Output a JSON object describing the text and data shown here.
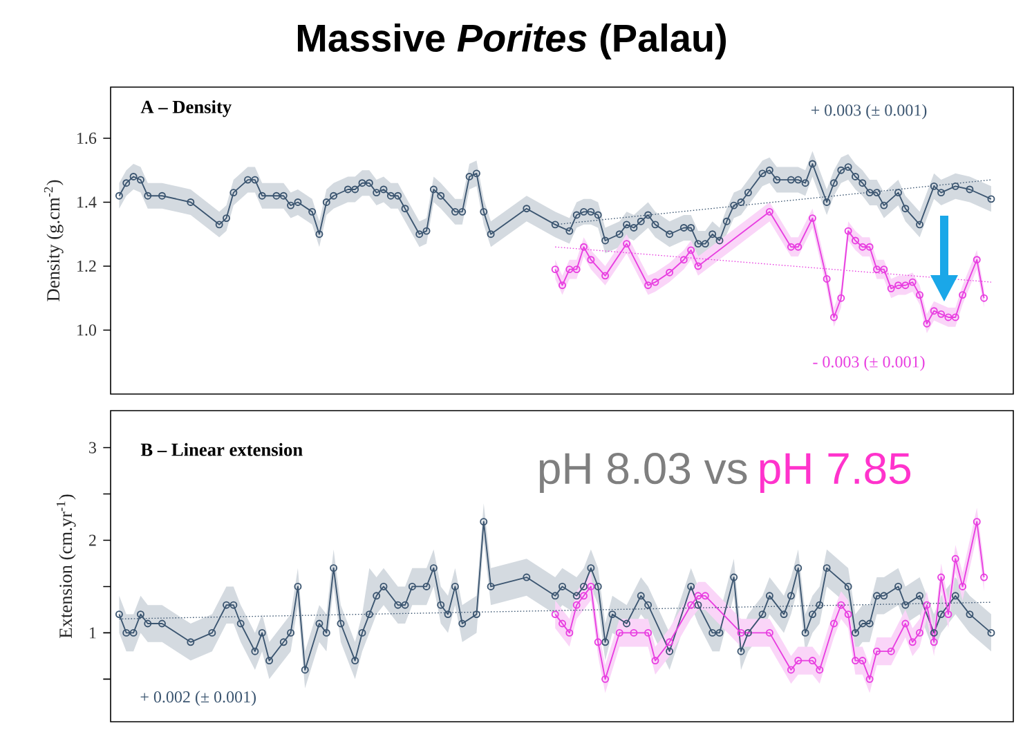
{
  "chart_data": [
    {
      "type": "line",
      "title": "Massive *Porites* (Palau)",
      "subtitle": "A – Density",
      "ylabel": "Density (g.cm$^{-2}$)",
      "ylim": [
        0.8,
        1.76
      ],
      "yticks": [
        {
          "value": 1.0,
          "label": "1.0"
        },
        1.2,
        1.4,
        1.6
      ],
      "tick_labels": "y",
      "marker": "circle",
      "annotations": [
        "+ 0.003 (± 0.001)",
        "- 0.003 (± 0.001)"
      ],
      "categories": [
        null,
        null,
        null,
        null,
        null,
        null,
        null,
        null,
        null,
        null,
        null,
        null,
        null,
        null,
        null,
        null,
        null,
        null,
        null,
        null,
        null,
        null,
        null,
        null,
        null,
        null,
        null,
        null,
        null,
        null,
        null,
        null,
        null,
        null,
        null,
        null,
        null,
        null,
        null,
        null,
        null,
        null,
        null,
        null,
        null,
        null,
        null,
        null,
        null,
        null,
        null,
        null,
        null,
        null,
        null,
        null,
        null,
        null,
        null,
        null,
        null,
        null,
        null,
        null,
        null,
        null,
        null,
        null,
        null,
        null,
        null,
        null,
        null,
        null,
        null,
        null,
        null,
        null,
        null,
        null,
        null,
        null,
        null,
        null,
        null,
        null,
        null,
        null,
        null,
        null,
        null,
        null,
        null,
        null,
        null,
        null,
        null,
        null,
        null,
        null,
        null,
        null,
        null,
        null,
        null,
        null,
        null,
        null,
        null,
        null,
        null,
        null,
        null,
        null,
        null,
        null,
        null,
        null,
        null,
        null,
        null,
        null,
        null
      ],
      "series": [
        {
          "line_style": "solid",
          "color": "#3b5570",
          "values": [
            1.42,
            1.46,
            1.48,
            1.47,
            1.42,
            null,
            1.42,
            null,
            null,
            null,
            1.4,
            null,
            null,
            null,
            1.33,
            1.35,
            1.43,
            null,
            1.47,
            1.47,
            1.42,
            null,
            1.42,
            1.42,
            1.39,
            1.4,
            null,
            1.37,
            1.3,
            1.4,
            1.42,
            null,
            1.44,
            1.44,
            1.46,
            1.46,
            1.43,
            1.44,
            1.42,
            1.42,
            1.38,
            null,
            1.3,
            1.31,
            1.44,
            1.42,
            null,
            1.37,
            1.37,
            1.48,
            1.49,
            1.37,
            1.3,
            null,
            null,
            null,
            null,
            1.38,
            null,
            null,
            null,
            1.33,
            null,
            1.31,
            1.36,
            1.37,
            1.37,
            1.36,
            1.28,
            null,
            1.3,
            1.33,
            1.32,
            1.34,
            1.36,
            1.33,
            null,
            1.3,
            null,
            1.32,
            1.32,
            1.27,
            1.27,
            1.3,
            1.28,
            1.34,
            1.39,
            1.4,
            1.43,
            null,
            1.49,
            1.5,
            1.47,
            null,
            1.47,
            1.47,
            1.46,
            1.52,
            null,
            1.4,
            1.46,
            1.5,
            1.51,
            1.48,
            1.46,
            1.43,
            1.43,
            1.39,
            null,
            1.43,
            1.38,
            null,
            1.33,
            null,
            1.45,
            1.43,
            null,
            1.45,
            null,
            1.44,
            null,
            null,
            1.41
          ],
          "lower": [
            1.38,
            1.42,
            1.44,
            1.43,
            1.38,
            null,
            1.38,
            null,
            null,
            null,
            1.36,
            null,
            null,
            null,
            1.29,
            1.31,
            1.39,
            null,
            1.43,
            1.43,
            1.38,
            null,
            1.38,
            1.38,
            1.35,
            1.36,
            null,
            1.33,
            1.26,
            1.36,
            1.38,
            null,
            1.4,
            1.4,
            1.42,
            1.42,
            1.39,
            1.4,
            1.38,
            1.38,
            1.34,
            null,
            1.26,
            1.27,
            1.4,
            1.38,
            null,
            1.33,
            1.33,
            1.44,
            1.45,
            1.33,
            1.26,
            null,
            null,
            null,
            null,
            1.34,
            null,
            null,
            null,
            1.29,
            null,
            1.27,
            1.32,
            1.33,
            1.33,
            1.32,
            1.24,
            null,
            1.26,
            1.29,
            1.28,
            1.3,
            1.32,
            1.29,
            null,
            1.26,
            null,
            1.28,
            1.28,
            1.23,
            1.23,
            1.26,
            1.24,
            1.3,
            1.35,
            1.36,
            1.39,
            null,
            1.45,
            1.46,
            1.43,
            null,
            1.43,
            1.43,
            1.42,
            1.48,
            null,
            1.36,
            1.42,
            1.46,
            1.47,
            1.44,
            1.42,
            1.39,
            1.39,
            1.35,
            null,
            1.39,
            1.34,
            null,
            1.29,
            null,
            1.41,
            1.39,
            null,
            1.41,
            null,
            1.4,
            null,
            null,
            1.37
          ],
          "upper": [
            1.46,
            1.5,
            1.52,
            1.51,
            1.46,
            null,
            1.46,
            null,
            null,
            null,
            1.44,
            null,
            null,
            null,
            1.37,
            1.39,
            1.47,
            null,
            1.51,
            1.51,
            1.46,
            null,
            1.46,
            1.46,
            1.43,
            1.44,
            null,
            1.41,
            1.34,
            1.44,
            1.46,
            null,
            1.48,
            1.48,
            1.5,
            1.5,
            1.47,
            1.48,
            1.46,
            1.46,
            1.42,
            null,
            1.34,
            1.35,
            1.48,
            1.46,
            null,
            1.41,
            1.41,
            1.52,
            1.53,
            1.41,
            1.34,
            null,
            null,
            null,
            null,
            1.42,
            null,
            null,
            null,
            1.37,
            null,
            1.35,
            1.4,
            1.41,
            1.41,
            1.4,
            1.32,
            null,
            1.34,
            1.37,
            1.36,
            1.38,
            1.4,
            1.37,
            null,
            1.34,
            null,
            1.36,
            1.36,
            1.31,
            1.31,
            1.34,
            1.32,
            1.38,
            1.43,
            1.44,
            1.47,
            null,
            1.53,
            1.54,
            1.51,
            null,
            1.51,
            1.51,
            1.5,
            1.56,
            null,
            1.44,
            1.5,
            1.54,
            1.55,
            1.52,
            1.5,
            1.47,
            1.47,
            1.43,
            null,
            1.47,
            1.42,
            null,
            1.37,
            null,
            1.49,
            1.47,
            null,
            1.49,
            null,
            1.48,
            null,
            null,
            1.45
          ]
        },
        {
          "line_style": "solid",
          "color": "#e83ee0",
          "values": [
            null,
            null,
            null,
            null,
            null,
            null,
            null,
            null,
            null,
            null,
            null,
            null,
            null,
            null,
            null,
            null,
            null,
            null,
            null,
            null,
            null,
            null,
            null,
            null,
            null,
            null,
            null,
            null,
            null,
            null,
            null,
            null,
            null,
            null,
            null,
            null,
            null,
            null,
            null,
            null,
            null,
            null,
            null,
            null,
            null,
            null,
            null,
            null,
            null,
            null,
            null,
            null,
            null,
            null,
            null,
            null,
            null,
            null,
            null,
            null,
            null,
            1.19,
            1.14,
            1.19,
            1.19,
            1.26,
            1.22,
            null,
            1.17,
            null,
            null,
            1.27,
            null,
            null,
            1.14,
            1.15,
            null,
            1.18,
            null,
            1.22,
            1.25,
            1.2,
            null,
            null,
            null,
            null,
            null,
            null,
            null,
            null,
            null,
            1.37,
            null,
            null,
            1.26,
            1.26,
            null,
            1.35,
            null,
            1.16,
            1.04,
            1.1,
            1.31,
            1.28,
            1.26,
            1.26,
            1.19,
            1.19,
            1.13,
            1.14,
            1.14,
            1.15,
            1.11,
            1.02,
            1.06,
            1.05,
            1.04,
            1.04,
            1.11,
            null,
            1.22,
            1.1,
            null
          ],
          "lower": [
            null,
            null,
            null,
            null,
            null,
            null,
            null,
            null,
            null,
            null,
            null,
            null,
            null,
            null,
            null,
            null,
            null,
            null,
            null,
            null,
            null,
            null,
            null,
            null,
            null,
            null,
            null,
            null,
            null,
            null,
            null,
            null,
            null,
            null,
            null,
            null,
            null,
            null,
            null,
            null,
            null,
            null,
            null,
            null,
            null,
            null,
            null,
            null,
            null,
            null,
            null,
            null,
            null,
            null,
            null,
            null,
            null,
            null,
            null,
            null,
            null,
            1.16,
            1.11,
            1.16,
            1.16,
            1.23,
            1.19,
            null,
            1.14,
            null,
            null,
            1.24,
            null,
            null,
            1.11,
            1.12,
            null,
            1.15,
            null,
            1.19,
            1.22,
            1.17,
            null,
            null,
            null,
            null,
            null,
            null,
            null,
            null,
            null,
            1.34,
            null,
            null,
            1.23,
            1.23,
            null,
            1.32,
            null,
            1.13,
            1.01,
            1.07,
            1.28,
            1.25,
            1.23,
            1.23,
            1.16,
            1.16,
            1.1,
            1.11,
            1.11,
            1.12,
            1.08,
            0.99,
            1.03,
            1.02,
            1.01,
            1.01,
            1.08,
            null,
            1.19,
            1.07,
            null
          ],
          "upper": [
            null,
            null,
            null,
            null,
            null,
            null,
            null,
            null,
            null,
            null,
            null,
            null,
            null,
            null,
            null,
            null,
            null,
            null,
            null,
            null,
            null,
            null,
            null,
            null,
            null,
            null,
            null,
            null,
            null,
            null,
            null,
            null,
            null,
            null,
            null,
            null,
            null,
            null,
            null,
            null,
            null,
            null,
            null,
            null,
            null,
            null,
            null,
            null,
            null,
            null,
            null,
            null,
            null,
            null,
            null,
            null,
            null,
            null,
            null,
            null,
            null,
            1.22,
            1.17,
            1.22,
            1.22,
            1.29,
            1.25,
            null,
            1.2,
            null,
            null,
            1.3,
            null,
            null,
            1.17,
            1.18,
            null,
            1.21,
            null,
            1.25,
            1.28,
            1.23,
            null,
            null,
            null,
            null,
            null,
            null,
            null,
            null,
            null,
            1.4,
            null,
            null,
            1.29,
            1.29,
            null,
            1.38,
            null,
            1.19,
            1.07,
            1.13,
            1.34,
            1.31,
            1.29,
            1.29,
            1.22,
            1.22,
            1.16,
            1.17,
            1.17,
            1.18,
            1.14,
            1.05,
            1.09,
            1.08,
            1.07,
            1.07,
            1.14,
            null,
            1.25,
            1.13,
            null
          ]
        },
        {
          "line_style": "dotted",
          "marker": "none",
          "color": "#3b5570",
          "values": [
            null,
            null,
            null,
            null,
            null,
            null,
            null,
            null,
            null,
            null,
            null,
            null,
            null,
            null,
            null,
            null,
            null,
            null,
            null,
            null,
            null,
            null,
            null,
            null,
            null,
            null,
            null,
            null,
            null,
            null,
            null,
            null,
            null,
            null,
            null,
            null,
            null,
            null,
            null,
            null,
            null,
            null,
            null,
            null,
            null,
            null,
            null,
            null,
            null,
            null,
            null,
            null,
            null,
            null,
            null,
            null,
            null,
            null,
            null,
            null,
            null,
            1.33,
            null,
            null,
            null,
            null,
            null,
            null,
            null,
            null,
            null,
            null,
            null,
            null,
            null,
            null,
            null,
            null,
            null,
            null,
            null,
            null,
            null,
            null,
            null,
            null,
            null,
            null,
            null,
            null,
            null,
            null,
            null,
            null,
            null,
            null,
            null,
            null,
            null,
            null,
            null,
            null,
            null,
            null,
            null,
            null,
            null,
            null,
            null,
            null,
            null,
            null,
            null,
            null,
            null,
            null,
            null,
            null,
            null,
            null,
            null,
            null,
            1.47
          ]
        },
        {
          "line_style": "dotted",
          "marker": "none",
          "color": "#e83ee0",
          "values": [
            null,
            null,
            null,
            null,
            null,
            null,
            null,
            null,
            null,
            null,
            null,
            null,
            null,
            null,
            null,
            null,
            null,
            null,
            null,
            null,
            null,
            null,
            null,
            null,
            null,
            null,
            null,
            null,
            null,
            null,
            null,
            null,
            null,
            null,
            null,
            null,
            null,
            null,
            null,
            null,
            null,
            null,
            null,
            null,
            null,
            null,
            null,
            null,
            null,
            null,
            null,
            null,
            null,
            null,
            null,
            null,
            null,
            null,
            null,
            null,
            null,
            1.26,
            null,
            null,
            null,
            null,
            null,
            null,
            null,
            null,
            null,
            null,
            null,
            null,
            null,
            null,
            null,
            null,
            null,
            null,
            null,
            null,
            null,
            null,
            null,
            null,
            null,
            null,
            null,
            null,
            null,
            null,
            null,
            null,
            null,
            null,
            null,
            null,
            null,
            null,
            null,
            null,
            null,
            null,
            null,
            null,
            null,
            null,
            null,
            null,
            null,
            null,
            null,
            null,
            null,
            null,
            null,
            null,
            null,
            null,
            null,
            null,
            1.15
          ]
        }
      ]
    },
    {
      "type": "line",
      "title": "B – Linear extension",
      "ylabel": "Extension (cm.yr$^{-1}$)",
      "ylim": [
        0.04,
        3.4
      ],
      "yticks": [
        {
          "value": 0.5,
          "label": null
        },
        1,
        {
          "value": 1.5,
          "label": null
        },
        2,
        {
          "value": 2.5,
          "label": null
        },
        3
      ],
      "tick_labels": "y",
      "marker": "circle",
      "annotations": [
        "+ 0.002 (± 0.001)",
        "pH 8.03  vs",
        "pH 7.85"
      ],
      "categories": [
        null,
        null,
        null,
        null,
        null,
        null,
        null,
        null,
        null,
        null,
        null,
        null,
        null,
        null,
        null,
        null,
        null,
        null,
        null,
        null,
        null,
        null,
        null,
        null,
        null,
        null,
        null,
        null,
        null,
        null,
        null,
        null,
        null,
        null,
        null,
        null,
        null,
        null,
        null,
        null,
        null,
        null,
        null,
        null,
        null,
        null,
        null,
        null,
        null,
        null,
        null,
        null,
        null,
        null,
        null,
        null,
        null,
        null,
        null,
        null,
        null,
        null,
        null,
        null,
        null,
        null,
        null,
        null,
        null,
        null,
        null,
        null,
        null,
        null,
        null,
        null,
        null,
        null,
        null,
        null,
        null,
        null,
        null,
        null,
        null,
        null,
        null,
        null,
        null,
        null,
        null,
        null,
        null,
        null,
        null,
        null,
        null,
        null,
        null,
        null,
        null,
        null,
        null,
        null,
        null,
        null,
        null,
        null,
        null,
        null,
        null,
        null,
        null,
        null,
        null,
        null,
        null,
        null,
        null,
        null,
        null,
        null,
        null
      ],
      "series": [
        {
          "line_style": "solid",
          "color": "#3b5570",
          "values": [
            1.2,
            1.0,
            1.0,
            1.2,
            1.1,
            null,
            1.1,
            null,
            null,
            null,
            0.9,
            null,
            null,
            1.0,
            null,
            1.3,
            1.3,
            1.1,
            null,
            0.8,
            1.0,
            0.7,
            null,
            0.9,
            1.0,
            1.5,
            0.6,
            null,
            1.1,
            1.0,
            1.7,
            1.1,
            null,
            0.7,
            1.0,
            1.2,
            1.4,
            1.5,
            null,
            1.3,
            1.3,
            1.5,
            null,
            1.5,
            1.7,
            1.3,
            1.2,
            1.5,
            1.1,
            null,
            1.2,
            2.2,
            1.5,
            null,
            null,
            null,
            null,
            1.6,
            null,
            null,
            null,
            1.4,
            1.5,
            null,
            1.4,
            1.5,
            1.7,
            1.5,
            0.9,
            1.2,
            null,
            1.1,
            null,
            1.4,
            1.3,
            null,
            null,
            0.8,
            null,
            null,
            1.5,
            1.3,
            null,
            1.0,
            1.0,
            null,
            1.6,
            0.8,
            1.0,
            null,
            1.2,
            1.4,
            null,
            1.2,
            1.4,
            1.7,
            1.0,
            1.2,
            1.3,
            1.7,
            null,
            null,
            1.5,
            1.0,
            1.1,
            1.1,
            1.4,
            1.4,
            null,
            1.5,
            1.3,
            null,
            1.4,
            null,
            1.0,
            1.2,
            null,
            1.4,
            null,
            1.2,
            null,
            null,
            1.0
          ],
          "lower": [
            1.0,
            0.8,
            0.8,
            1.0,
            0.9,
            null,
            0.9,
            null,
            null,
            null,
            0.7,
            null,
            null,
            0.8,
            null,
            1.1,
            1.1,
            0.9,
            null,
            0.6,
            0.8,
            0.5,
            null,
            0.7,
            0.8,
            1.3,
            0.4,
            null,
            0.9,
            0.8,
            1.5,
            0.9,
            null,
            0.5,
            0.8,
            1.0,
            1.2,
            1.3,
            null,
            1.1,
            1.1,
            1.3,
            null,
            1.3,
            1.5,
            1.1,
            1.0,
            1.3,
            0.9,
            null,
            1.0,
            2.0,
            1.3,
            null,
            null,
            null,
            null,
            1.4,
            null,
            null,
            null,
            1.2,
            1.3,
            null,
            1.2,
            1.3,
            1.5,
            1.3,
            0.7,
            1.0,
            null,
            0.9,
            null,
            1.2,
            1.1,
            null,
            null,
            0.6,
            null,
            null,
            1.3,
            1.1,
            null,
            0.8,
            0.8,
            null,
            1.4,
            0.6,
            0.8,
            null,
            1.0,
            1.2,
            null,
            1.0,
            1.2,
            1.5,
            0.8,
            1.0,
            1.1,
            1.5,
            null,
            null,
            1.3,
            0.8,
            0.9,
            0.9,
            1.2,
            1.2,
            null,
            1.3,
            1.1,
            null,
            1.2,
            null,
            0.8,
            1.0,
            null,
            1.2,
            null,
            1.0,
            null,
            null,
            0.8
          ],
          "upper": [
            1.4,
            1.2,
            1.2,
            1.4,
            1.3,
            null,
            1.3,
            null,
            null,
            null,
            1.1,
            null,
            null,
            1.2,
            null,
            1.5,
            1.5,
            1.3,
            null,
            1.0,
            1.2,
            0.9,
            null,
            1.1,
            1.2,
            1.7,
            0.8,
            null,
            1.3,
            1.2,
            1.9,
            1.3,
            null,
            0.9,
            1.2,
            1.7,
            1.6,
            1.7,
            null,
            1.5,
            1.5,
            1.7,
            null,
            1.7,
            1.9,
            1.5,
            1.4,
            1.7,
            1.3,
            null,
            1.4,
            2.4,
            1.7,
            null,
            null,
            null,
            null,
            1.8,
            null,
            null,
            null,
            1.6,
            1.7,
            null,
            1.6,
            1.7,
            1.9,
            1.7,
            1.1,
            1.4,
            null,
            1.3,
            null,
            1.6,
            1.5,
            null,
            null,
            1.0,
            null,
            null,
            1.7,
            1.5,
            null,
            1.2,
            1.2,
            null,
            1.8,
            1.0,
            1.2,
            null,
            1.4,
            1.6,
            null,
            1.4,
            1.6,
            1.9,
            1.2,
            1.4,
            1.5,
            1.9,
            null,
            null,
            1.7,
            1.2,
            1.3,
            1.3,
            1.6,
            1.6,
            null,
            1.7,
            1.5,
            null,
            1.6,
            null,
            1.2,
            1.4,
            null,
            1.6,
            null,
            1.4,
            null,
            null,
            1.2
          ]
        },
        {
          "line_style": "solid",
          "color": "#e83ee0",
          "values": [
            null,
            null,
            null,
            null,
            null,
            null,
            null,
            null,
            null,
            null,
            null,
            null,
            null,
            null,
            null,
            null,
            null,
            null,
            null,
            null,
            null,
            null,
            null,
            null,
            null,
            null,
            null,
            null,
            null,
            null,
            null,
            null,
            null,
            null,
            null,
            null,
            null,
            null,
            null,
            null,
            null,
            null,
            null,
            null,
            null,
            null,
            null,
            null,
            null,
            null,
            null,
            null,
            null,
            null,
            null,
            null,
            null,
            null,
            null,
            null,
            null,
            1.2,
            1.1,
            1.0,
            1.3,
            1.4,
            1.5,
            0.9,
            0.5,
            null,
            1.0,
            null,
            1.0,
            null,
            1.0,
            0.7,
            null,
            0.9,
            null,
            null,
            1.3,
            1.4,
            1.4,
            null,
            null,
            null,
            null,
            1.0,
            null,
            null,
            null,
            1.0,
            null,
            null,
            0.6,
            0.7,
            null,
            0.7,
            0.6,
            null,
            1.1,
            1.3,
            1.2,
            0.7,
            0.7,
            0.5,
            0.8,
            null,
            0.8,
            null,
            1.1,
            0.9,
            1.0,
            1.3,
            0.9,
            1.6,
            1.2,
            1.8,
            1.5,
            null,
            2.2,
            1.6,
            null
          ],
          "lower": [
            null,
            null,
            null,
            null,
            null,
            null,
            null,
            null,
            null,
            null,
            null,
            null,
            null,
            null,
            null,
            null,
            null,
            null,
            null,
            null,
            null,
            null,
            null,
            null,
            null,
            null,
            null,
            null,
            null,
            null,
            null,
            null,
            null,
            null,
            null,
            null,
            null,
            null,
            null,
            null,
            null,
            null,
            null,
            null,
            null,
            null,
            null,
            null,
            null,
            null,
            null,
            null,
            null,
            null,
            null,
            null,
            null,
            null,
            null,
            null,
            null,
            1.05,
            0.95,
            0.85,
            1.15,
            1.25,
            1.35,
            0.75,
            0.35,
            null,
            0.85,
            null,
            0.85,
            null,
            0.85,
            0.55,
            null,
            0.75,
            null,
            null,
            1.15,
            1.25,
            1.25,
            null,
            null,
            null,
            null,
            0.85,
            null,
            null,
            null,
            0.85,
            null,
            null,
            0.45,
            0.55,
            null,
            0.55,
            0.45,
            null,
            0.95,
            1.15,
            1.05,
            0.55,
            0.55,
            0.35,
            0.65,
            null,
            0.65,
            null,
            0.95,
            0.75,
            0.85,
            1.15,
            0.75,
            1.45,
            1.05,
            1.65,
            1.35,
            null,
            2.05,
            1.45,
            null
          ],
          "upper": [
            null,
            null,
            null,
            null,
            null,
            null,
            null,
            null,
            null,
            null,
            null,
            null,
            null,
            null,
            null,
            null,
            null,
            null,
            null,
            null,
            null,
            null,
            null,
            null,
            null,
            null,
            null,
            null,
            null,
            null,
            null,
            null,
            null,
            null,
            null,
            null,
            null,
            null,
            null,
            null,
            null,
            null,
            null,
            null,
            null,
            null,
            null,
            null,
            null,
            null,
            null,
            null,
            null,
            null,
            null,
            null,
            null,
            null,
            null,
            null,
            null,
            1.35,
            1.25,
            1.15,
            1.45,
            1.55,
            1.65,
            1.05,
            0.65,
            null,
            1.15,
            null,
            1.15,
            null,
            1.15,
            0.85,
            null,
            1.05,
            null,
            null,
            1.45,
            1.55,
            1.55,
            null,
            null,
            null,
            null,
            1.15,
            null,
            null,
            null,
            1.15,
            null,
            null,
            0.75,
            0.85,
            null,
            0.85,
            0.75,
            null,
            1.25,
            1.45,
            1.35,
            0.85,
            0.85,
            0.65,
            0.95,
            null,
            0.95,
            null,
            1.25,
            1.05,
            1.15,
            1.45,
            1.05,
            1.75,
            1.35,
            1.95,
            1.65,
            null,
            2.35,
            1.75,
            null
          ]
        },
        {
          "line_style": "dotted",
          "marker": "none",
          "color": "#3b5570",
          "values": [
            1.15,
            null,
            null,
            null,
            null,
            null,
            null,
            null,
            null,
            null,
            null,
            null,
            null,
            null,
            null,
            null,
            null,
            null,
            null,
            null,
            null,
            null,
            null,
            null,
            null,
            null,
            null,
            null,
            null,
            null,
            null,
            null,
            null,
            null,
            null,
            null,
            null,
            null,
            null,
            null,
            null,
            null,
            null,
            null,
            null,
            null,
            null,
            null,
            null,
            null,
            null,
            null,
            null,
            null,
            null,
            null,
            null,
            null,
            null,
            null,
            null,
            null,
            null,
            null,
            null,
            null,
            null,
            null,
            null,
            null,
            null,
            null,
            null,
            null,
            null,
            null,
            null,
            null,
            null,
            null,
            null,
            null,
            null,
            null,
            null,
            null,
            null,
            null,
            null,
            null,
            null,
            null,
            null,
            null,
            null,
            null,
            null,
            null,
            null,
            null,
            null,
            null,
            null,
            null,
            null,
            null,
            null,
            null,
            null,
            null,
            null,
            null,
            null,
            null,
            null,
            null,
            null,
            null,
            null,
            null,
            null,
            null,
            1.33
          ]
        }
      ]
    }
  ]
}
